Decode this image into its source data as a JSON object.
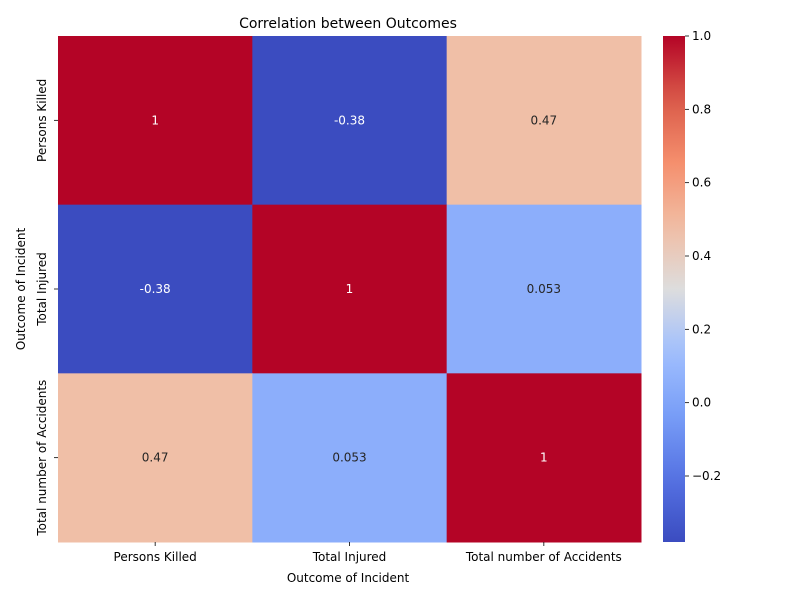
{
  "chart_data": {
    "type": "heatmap",
    "title": "Correlation between Outcomes",
    "xlabel": "Outcome of Incident",
    "ylabel": "Outcome of Incident",
    "x_categories": [
      "Persons Killed",
      "Total Injured",
      "Total number of Accidents"
    ],
    "y_categories": [
      "Persons Killed",
      "Total Injured",
      "Total number of Accidents"
    ],
    "values": [
      [
        1,
        -0.38,
        0.47
      ],
      [
        -0.38,
        1,
        0.053
      ],
      [
        0.47,
        0.053,
        1
      ]
    ],
    "annotations": [
      [
        "1",
        "-0.38",
        "0.47"
      ],
      [
        "-0.38",
        "1",
        "0.053"
      ],
      [
        "0.47",
        "0.053",
        "1"
      ]
    ],
    "colormap": "coolwarm",
    "color_range": [
      -0.38,
      1
    ],
    "colorbar_ticks": [
      -0.2,
      0.0,
      0.2,
      0.4,
      0.6,
      0.8,
      1.0
    ],
    "colorbar_tick_labels": [
      "−0.2",
      "0.0",
      "0.2",
      "0.4",
      "0.6",
      "0.8",
      "1.0"
    ]
  }
}
